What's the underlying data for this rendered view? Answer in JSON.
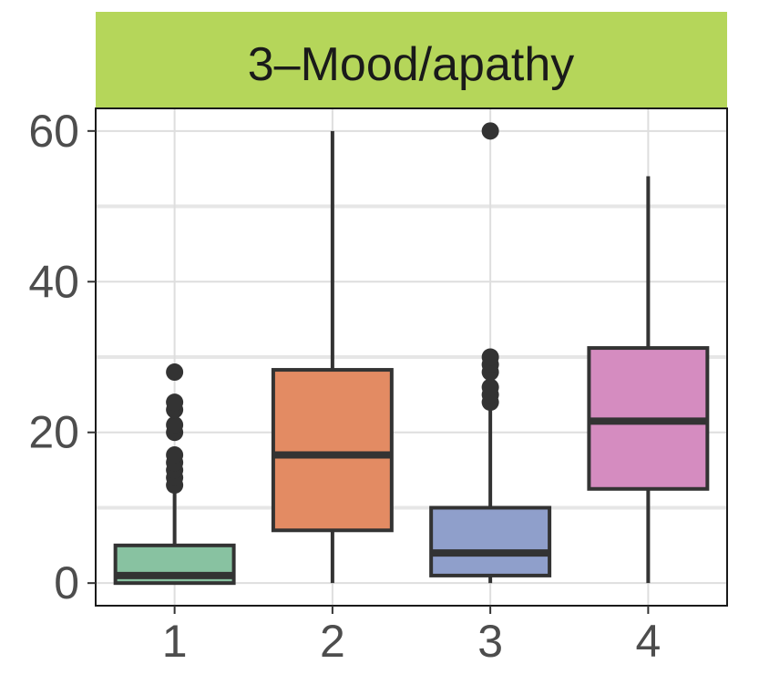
{
  "chart_data": {
    "type": "box",
    "facet_title": "3–Mood/apathy",
    "strip_color": "#b5d65a",
    "xlabel": "",
    "ylabel": "",
    "categories": [
      "1",
      "2",
      "3",
      "4"
    ],
    "ylim": [
      -3,
      63
    ],
    "y_ticks": [
      0,
      20,
      40,
      60
    ],
    "y_tick_labels": [
      "0",
      "20",
      "40",
      "60"
    ],
    "grid": true,
    "boxes": [
      {
        "category": "1",
        "fill": "#88c2a1",
        "whisker_low": 0,
        "q1": 0,
        "median": 1,
        "q3": 5,
        "whisker_high": 12,
        "outliers": [
          13,
          14,
          15,
          16,
          17,
          20,
          21,
          23,
          24,
          28
        ]
      },
      {
        "category": "2",
        "fill": "#e38b63",
        "whisker_low": 0,
        "q1": 7,
        "median": 17,
        "q3": 28.3,
        "whisker_high": 60,
        "outliers": []
      },
      {
        "category": "3",
        "fill": "#8f9fcb",
        "whisker_low": 0,
        "q1": 1,
        "median": 4,
        "q3": 10,
        "whisker_high": 23,
        "outliers": [
          24,
          25,
          26,
          28,
          29,
          30,
          60
        ]
      },
      {
        "category": "4",
        "fill": "#d58cc0",
        "whisker_low": 0,
        "q1": 12.5,
        "median": 21.5,
        "q3": 31.2,
        "whisker_high": 54,
        "outliers": []
      }
    ]
  }
}
